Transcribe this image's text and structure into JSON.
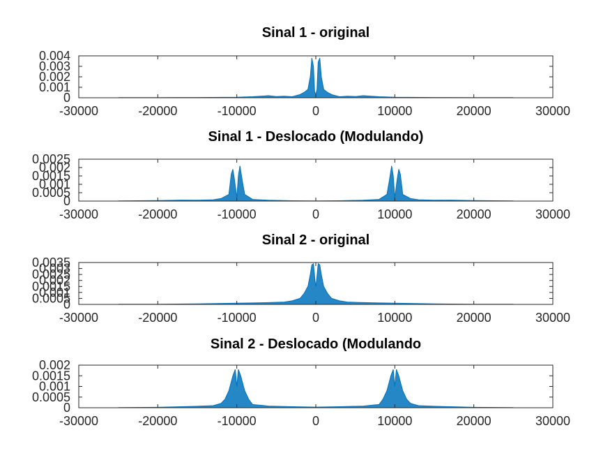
{
  "chart_data": [
    {
      "type": "area",
      "title": "Sinal 1 - original",
      "xlim": [
        -30000,
        30000
      ],
      "ylim": [
        0,
        0.004
      ],
      "xticks": [
        -30000,
        -20000,
        -10000,
        0,
        10000,
        20000,
        30000
      ],
      "xtick_labels": [
        "-30000",
        "-20000",
        "-10000",
        "0",
        "10000",
        "20000",
        "30000"
      ],
      "yticks": [
        0,
        0.001,
        0.002,
        0.003,
        0.004
      ],
      "ytick_labels": [
        "0",
        "0.001",
        "0.002",
        "0.003",
        "0.004"
      ],
      "color": "#0072bd",
      "x": [
        -25000,
        -20000,
        -15000,
        -10000,
        -8000,
        -6000,
        -5000,
        -4000,
        -3000,
        -2000,
        -1500,
        -1000,
        -700,
        -500,
        -300,
        -150,
        0,
        150,
        300,
        500,
        700,
        1000,
        1500,
        2000,
        3000,
        4000,
        5000,
        6000,
        8000,
        10000,
        15000,
        20000,
        25000
      ],
      "values": [
        1e-05,
        2e-05,
        3e-05,
        5e-05,
        0.0001,
        0.0002,
        0.00012,
        0.00015,
        0.0001,
        0.0003,
        0.0005,
        0.0008,
        0.002,
        0.0038,
        0.003,
        0.0006,
        0.0003,
        0.0008,
        0.0034,
        0.0038,
        0.002,
        0.0008,
        0.0005,
        0.0003,
        0.0001,
        0.00015,
        0.00012,
        0.0002,
        0.0001,
        5e-05,
        3e-05,
        2e-05,
        1e-05
      ]
    },
    {
      "type": "area",
      "title": "Sinal 1 - Deslocado (Modulando)",
      "xlim": [
        -30000,
        30000
      ],
      "ylim": [
        0,
        0.0025
      ],
      "xticks": [
        -30000,
        -20000,
        -10000,
        0,
        10000,
        20000,
        30000
      ],
      "xtick_labels": [
        "-30000",
        "-20000",
        "-10000",
        "0",
        "10000",
        "20000",
        "30000"
      ],
      "yticks": [
        0,
        0.0005,
        0.001,
        0.0015,
        0.002,
        0.0025
      ],
      "ytick_labels": [
        "0",
        "0.0005",
        "0.001",
        "0.0015",
        "0.002",
        "0.0025"
      ],
      "color": "#0072bd",
      "x": [
        -25000,
        -20000,
        -17000,
        -15000,
        -13000,
        -12000,
        -11000,
        -10700,
        -10500,
        -10300,
        -10000,
        -9800,
        -9600,
        -9300,
        -9000,
        -8000,
        -6000,
        -3000,
        0,
        3000,
        6000,
        8000,
        9000,
        9300,
        9600,
        9800,
        10000,
        10300,
        10500,
        10700,
        11000,
        12000,
        13000,
        15000,
        17000,
        20000,
        25000
      ],
      "values": [
        1e-05,
        3e-05,
        6e-05,
        5e-05,
        8e-05,
        0.00015,
        0.0004,
        0.0016,
        0.0019,
        0.0013,
        0.0002,
        0.0015,
        0.0021,
        0.0012,
        0.0004,
        0.0001,
        5e-05,
        2e-05,
        1e-05,
        2e-05,
        5e-05,
        0.0001,
        0.0004,
        0.0012,
        0.0021,
        0.0015,
        0.0002,
        0.0013,
        0.0019,
        0.0016,
        0.0004,
        0.00015,
        8e-05,
        5e-05,
        6e-05,
        3e-05,
        1e-05
      ]
    },
    {
      "type": "area",
      "title": "Sinal 2 - original",
      "xlim": [
        -30000,
        30000
      ],
      "ylim": [
        0,
        0.0035
      ],
      "xticks": [
        -30000,
        -20000,
        -10000,
        0,
        10000,
        20000,
        30000
      ],
      "xtick_labels": [
        "-30000",
        "-20000",
        "-10000",
        "0",
        "10000",
        "20000",
        "30000"
      ],
      "yticks": [
        0,
        0.0005,
        0.001,
        0.0015,
        0.002,
        0.0025,
        0.003,
        0.0035
      ],
      "ytick_labels": [
        "0",
        "0.0005",
        "0.001",
        "0.0015",
        "0.002",
        "0.0025",
        "0.003",
        "0.0035"
      ],
      "color": "#0072bd",
      "x": [
        -25000,
        -20000,
        -15000,
        -10000,
        -8000,
        -6000,
        -4000,
        -3000,
        -2000,
        -1500,
        -1000,
        -700,
        -500,
        -300,
        -100,
        0,
        100,
        300,
        500,
        700,
        1000,
        1500,
        2000,
        3000,
        4000,
        6000,
        8000,
        10000,
        15000,
        20000,
        25000
      ],
      "values": [
        1e-05,
        2e-05,
        4e-05,
        0.0001,
        0.00012,
        0.00015,
        0.0002,
        0.0003,
        0.0005,
        0.0009,
        0.0015,
        0.0025,
        0.0033,
        0.0034,
        0.002,
        0.0015,
        0.002,
        0.0034,
        0.0033,
        0.0025,
        0.0015,
        0.0009,
        0.0005,
        0.0003,
        0.0002,
        0.00015,
        0.00012,
        0.0001,
        4e-05,
        2e-05,
        1e-05
      ]
    },
    {
      "type": "area",
      "title": "Sinal 2 - Deslocado (Modulando",
      "xlim": [
        -30000,
        30000
      ],
      "ylim": [
        0,
        0.002
      ],
      "xticks": [
        -30000,
        -20000,
        -10000,
        0,
        10000,
        20000,
        30000
      ],
      "xtick_labels": [
        "-30000",
        "-20000",
        "-10000",
        "0",
        "10000",
        "20000",
        "30000"
      ],
      "yticks": [
        0,
        0.0005,
        0.001,
        0.0015,
        0.002
      ],
      "ytick_labels": [
        "0",
        "0.0005",
        "0.001",
        "0.0015",
        "0.002"
      ],
      "color": "#0072bd",
      "x": [
        -25000,
        -20000,
        -17000,
        -15000,
        -13000,
        -12000,
        -11500,
        -11000,
        -10500,
        -10200,
        -10000,
        -9800,
        -9500,
        -9000,
        -8500,
        -8000,
        -6000,
        -3000,
        0,
        3000,
        6000,
        8000,
        8500,
        9000,
        9500,
        9800,
        10000,
        10200,
        10500,
        11000,
        11500,
        12000,
        13000,
        15000,
        17000,
        20000,
        25000
      ],
      "values": [
        1e-05,
        2e-05,
        5e-05,
        7e-05,
        0.0001,
        0.0002,
        0.0004,
        0.0008,
        0.0015,
        0.0018,
        0.001,
        0.0018,
        0.0015,
        0.0008,
        0.0004,
        0.00015,
        8e-05,
        5e-05,
        3e-05,
        5e-05,
        8e-05,
        0.00015,
        0.0004,
        0.0008,
        0.0015,
        0.0018,
        0.001,
        0.0018,
        0.0015,
        0.0008,
        0.0004,
        0.0002,
        0.0001,
        7e-05,
        5e-05,
        2e-05,
        1e-05
      ]
    }
  ]
}
